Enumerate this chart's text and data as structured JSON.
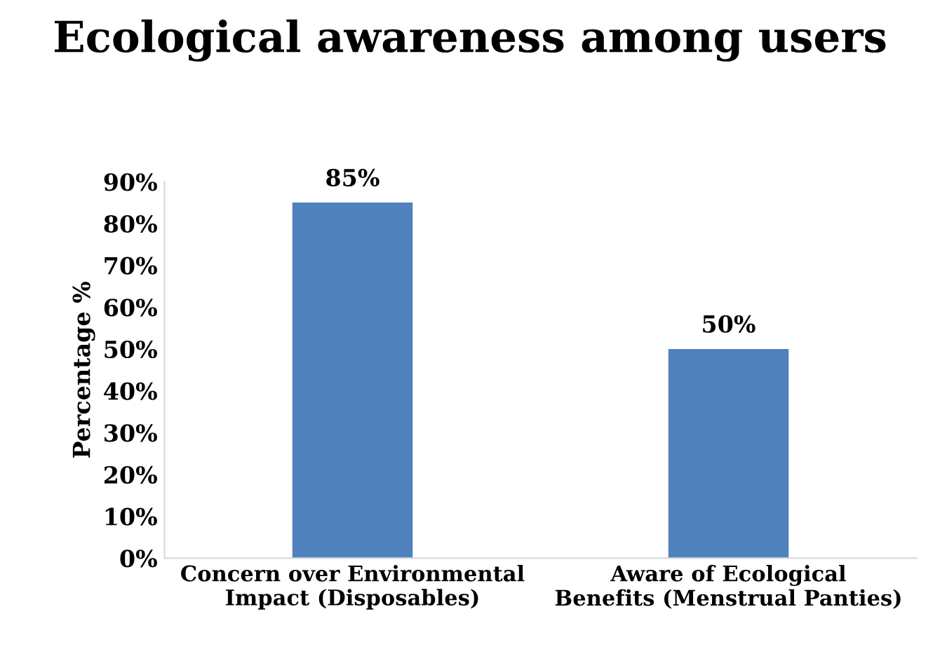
{
  "chart_data": {
    "type": "bar",
    "title": "Ecological awareness among users",
    "ylabel": "Percentage %",
    "categories": [
      "Concern over Environmental Impact (Disposables)",
      "Aware of Ecological Benefits (Menstrual Panties)"
    ],
    "values": [
      85,
      50
    ],
    "value_labels": [
      "85%",
      "50%"
    ],
    "color": "#4f81bd",
    "ylim": [
      0,
      90
    ],
    "yticks": [
      {
        "value": 0,
        "label": "0%"
      },
      {
        "value": 10,
        "label": "10%"
      },
      {
        "value": 20,
        "label": "20%"
      },
      {
        "value": 30,
        "label": "30%"
      },
      {
        "value": 40,
        "label": "40%"
      },
      {
        "value": 50,
        "label": "50%"
      },
      {
        "value": 60,
        "label": "60%"
      },
      {
        "value": 70,
        "label": "70%"
      },
      {
        "value": 80,
        "label": "80%"
      },
      {
        "value": 90,
        "label": "90%"
      }
    ],
    "grid": false,
    "legend": false
  }
}
